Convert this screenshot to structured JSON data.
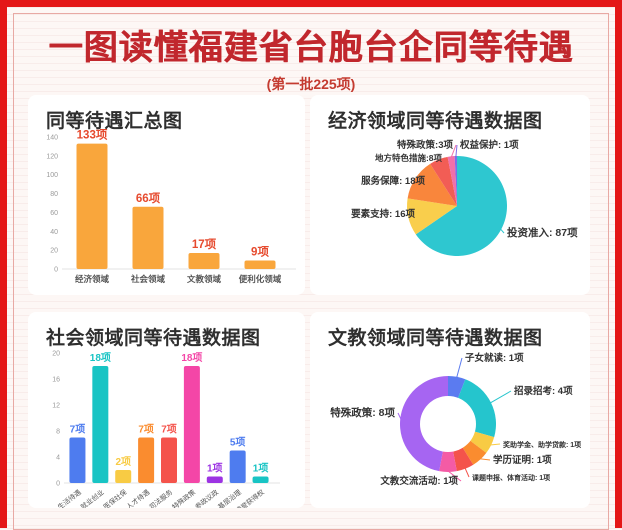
{
  "page": {
    "title": "一图读懂福建省台胞台企同等待遇",
    "subtitle": "(第一批225项)"
  },
  "chart_data": [
    {
      "id": "summary",
      "type": "bar",
      "title": "同等待遇汇总图",
      "categories": [
        "经济领域",
        "社会领域",
        "文教领域",
        "便利化领域"
      ],
      "values": [
        133,
        66,
        17,
        9
      ],
      "value_labels": [
        "133项",
        "66项",
        "17项",
        "9项"
      ],
      "bar_color": "#f9a63c",
      "label_color": "#e64a2e",
      "ylim": [
        0,
        140
      ],
      "ytick_step": 20,
      "grid": false
    },
    {
      "id": "economy",
      "type": "pie",
      "title": "经济领域同等待遇数据图",
      "total": 133,
      "slices": [
        {
          "name": "投资准入",
          "value": 87,
          "label": "投资准入: 87项",
          "color": "#2ec7d0"
        },
        {
          "name": "要素支持",
          "value": 16,
          "label": "要素支持: 16项",
          "color": "#f9ce4c"
        },
        {
          "name": "服务保障",
          "value": 18,
          "label": "服务保障: 18项",
          "color": "#f9863c"
        },
        {
          "name": "地方特色措施",
          "value": 8,
          "label": "地方特色措施:8项",
          "color": "#f25d55"
        },
        {
          "name": "特殊政策",
          "value": 3,
          "label": "特殊政策:3项",
          "color": "#f170aa"
        },
        {
          "name": "权益保护",
          "value": 1,
          "label": "权益保护: 1项",
          "color": "#7d6be8"
        }
      ]
    },
    {
      "id": "society",
      "type": "bar",
      "title": "社会领域同等待遇数据图",
      "categories": [
        "生活待遇",
        "就业创业",
        "医保社保",
        "人才待遇",
        "司法服务",
        "特殊政策",
        "参政议政",
        "基层治理",
        "荣誉获得权"
      ],
      "values": [
        7,
        18,
        2,
        7,
        7,
        18,
        1,
        5,
        1
      ],
      "value_labels": [
        "7项",
        "18项",
        "2项",
        "7项",
        "7项",
        "18项",
        "1项",
        "5项",
        "1项"
      ],
      "bar_colors": [
        "#4e7cef",
        "#18c4c4",
        "#f8cb44",
        "#fa8c2f",
        "#f4534b",
        "#f446a7",
        "#9c33e3",
        "#4e7cef",
        "#18c4c4"
      ],
      "ylim": [
        0,
        20
      ],
      "ytick_step": 4,
      "grid": false
    },
    {
      "id": "education",
      "type": "pie",
      "title": "文教领域同等待遇数据图",
      "total": 17,
      "donut": true,
      "slices": [
        {
          "name": "子女就读",
          "value": 1,
          "label": "子女就读: 1项",
          "color": "#5b7bf0"
        },
        {
          "name": "招录招考",
          "value": 4,
          "label": "招录招考: 4项",
          "color": "#25c5cd"
        },
        {
          "name": "奖助学金、助学贷款",
          "value": 1,
          "label": "奖助学金、助学贷款: 1项",
          "color": "#f8cb44"
        },
        {
          "name": "学历证明",
          "value": 1,
          "label": "学历证明: 1项",
          "color": "#fa8c2f"
        },
        {
          "name": "课题申报、体育活动",
          "value": 1,
          "label": "课题申报、体育活动: 1项",
          "color": "#f4534b"
        },
        {
          "name": "文教交流活动",
          "value": 1,
          "label": "文教交流活动: 1项",
          "color": "#f45ba5"
        },
        {
          "name": "特殊政策",
          "value": 8,
          "label": "特殊政策: 8项",
          "color": "#a665f2"
        }
      ]
    }
  ]
}
